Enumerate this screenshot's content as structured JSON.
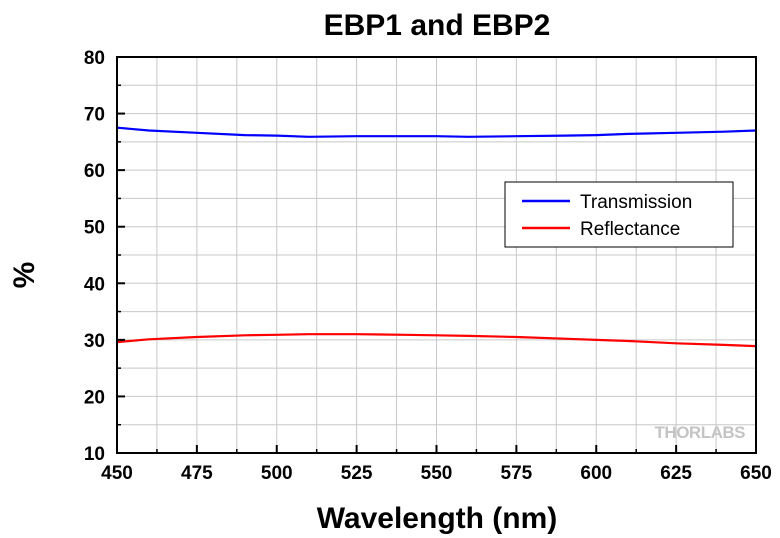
{
  "chart_data": {
    "type": "line",
    "title": "EBP1 and EBP2",
    "xlabel": "Wavelength (nm)",
    "ylabel": "%",
    "xlim": [
      450,
      650
    ],
    "ylim": [
      10,
      80
    ],
    "xticks": [
      450,
      475,
      500,
      525,
      550,
      575,
      600,
      625,
      650
    ],
    "yticks": [
      10,
      20,
      30,
      40,
      50,
      60,
      70,
      80
    ],
    "grid": true,
    "legend_position": "right",
    "series": [
      {
        "name": "Transmission",
        "color": "#0000ff",
        "x": [
          450,
          460,
          475,
          490,
          500,
          510,
          525,
          540,
          550,
          560,
          575,
          590,
          600,
          610,
          625,
          640,
          650
        ],
        "y": [
          67.5,
          67.0,
          66.6,
          66.2,
          66.1,
          65.9,
          66.0,
          66.0,
          66.0,
          65.9,
          66.0,
          66.1,
          66.2,
          66.4,
          66.6,
          66.8,
          67.0
        ]
      },
      {
        "name": "Reflectance",
        "color": "#ff0000",
        "x": [
          450,
          460,
          475,
          490,
          500,
          510,
          525,
          540,
          550,
          560,
          575,
          590,
          600,
          610,
          625,
          640,
          650
        ],
        "y": [
          29.6,
          30.1,
          30.5,
          30.8,
          30.9,
          31.0,
          31.0,
          30.9,
          30.8,
          30.7,
          30.5,
          30.2,
          30.0,
          29.8,
          29.4,
          29.1,
          28.9
        ]
      }
    ],
    "watermark": "THORLABS"
  }
}
